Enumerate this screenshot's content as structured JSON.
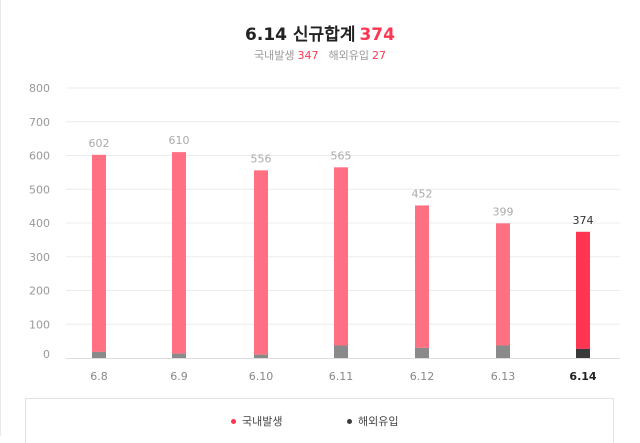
{
  "header": {
    "title_prefix": "6.14 신규합계",
    "title_total": "374",
    "domestic_label": "국내발생",
    "domestic_value": "347",
    "overseas_label": "해외유입",
    "overseas_value": "27"
  },
  "colors": {
    "domestic": "#ff7182",
    "domestic_highlight": "#ff3552",
    "overseas": "#8a8a8a",
    "overseas_highlight": "#3a3a3a",
    "grid": "#ececec",
    "label": "#aaaaaa"
  },
  "chart_data": {
    "type": "bar",
    "stacked": true,
    "categories": [
      "6.8",
      "6.9",
      "6.10",
      "6.11",
      "6.12",
      "6.13",
      "6.14"
    ],
    "highlight_index": 6,
    "totals": [
      602,
      610,
      556,
      565,
      452,
      399,
      374
    ],
    "series": [
      {
        "name": "국내발생",
        "values": [
          584,
          597,
          546,
          528,
          422,
          362,
          347
        ]
      },
      {
        "name": "해외유입",
        "values": [
          18,
          13,
          10,
          37,
          30,
          37,
          27
        ]
      }
    ],
    "ylim": [
      0,
      800
    ],
    "yticks": [
      "0",
      "100",
      "200",
      "300",
      "400",
      "500",
      "600",
      "700",
      "800"
    ],
    "grid": true,
    "legend": "bottom"
  }
}
